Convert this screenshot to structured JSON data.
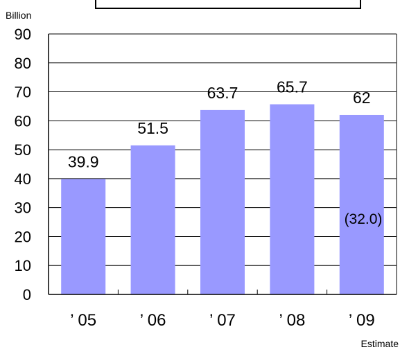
{
  "chart_data": {
    "type": "bar",
    "title": "",
    "unit_label": "Billion",
    "categories": [
      "’ 05",
      "’ 06",
      "’ 07",
      "’ 08",
      "’ 09"
    ],
    "series": [
      {
        "values": [
          39.9,
          51.5,
          63.7,
          65.7,
          62
        ],
        "data_labels": [
          "39.9",
          "51.5",
          "63.7",
          "65.7",
          "62"
        ]
      }
    ],
    "annotation": "(32.0)",
    "footnote": "Estimate",
    "ylim": [
      0,
      90
    ],
    "yticks": [
      0,
      10,
      20,
      30,
      40,
      50,
      60,
      70,
      80,
      90
    ],
    "grid": true,
    "legend": "none",
    "bar_color": "#9999ff",
    "grid_color": "#000000"
  }
}
